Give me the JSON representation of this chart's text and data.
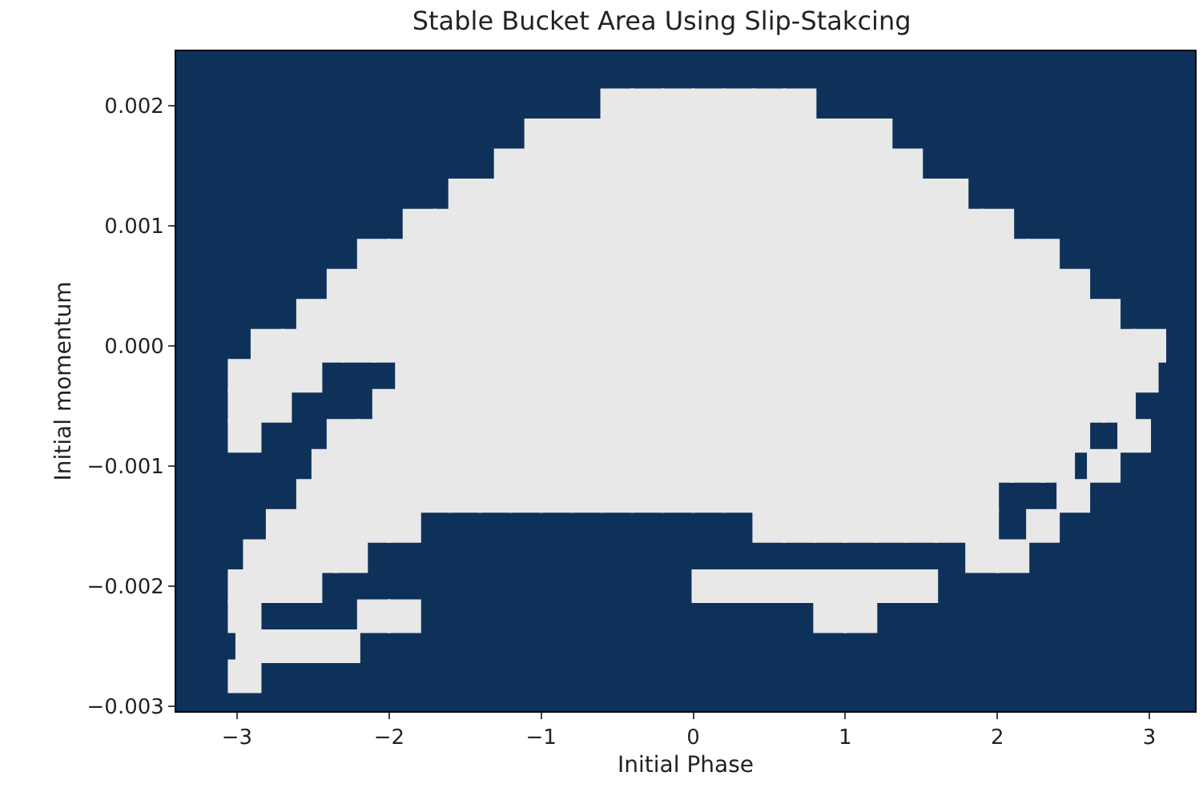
{
  "chart_data": {
    "type": "scatter",
    "title": "Stable Bucket Area Using Slip-Stakcing",
    "xlabel": "Initial Phase",
    "ylabel": "Initial momentum",
    "xlim": [
      -3.4,
      3.3
    ],
    "ylim": [
      -0.00304,
      0.00245
    ],
    "xticks": [
      {
        "value": -3,
        "label": "−3"
      },
      {
        "value": -2,
        "label": "−2"
      },
      {
        "value": -1,
        "label": "−1"
      },
      0,
      1,
      2,
      3
    ],
    "yticks": [
      {
        "value": -0.003,
        "label": "−0.003"
      },
      {
        "value": -0.002,
        "label": "−0.002"
      },
      {
        "value": -0.001,
        "label": "−0.001"
      },
      {
        "value": 0,
        "label": "0.000"
      },
      {
        "value": 0.001,
        "label": "0.001"
      },
      {
        "value": 0.002,
        "label": "0.002"
      }
    ],
    "grid": false,
    "marker": "square",
    "series": [
      {
        "color": "#e8e8e8",
        "x": [
          -0.5,
          -0.3,
          -0.1,
          0.1,
          0.3,
          0.5,
          0.7
        ],
        "values": [
          0.002,
          0.002,
          0.002,
          0.002,
          0.002,
          0.002,
          0.002
        ]
      },
      {
        "color": "#e8e8e8",
        "x": [
          -1.0,
          -0.8,
          -0.6,
          -0.4,
          -0.2,
          0.0,
          0.2,
          0.4,
          0.6,
          0.8,
          1.0,
          1.2
        ],
        "values": [
          0.00175,
          0.00175,
          0.00175,
          0.00175,
          0.00175,
          0.00175,
          0.00175,
          0.00175,
          0.00175,
          0.00175,
          0.00175,
          0.00175
        ]
      },
      {
        "color": "#e8e8e8",
        "x": [
          -1.2,
          -1.0,
          -0.8,
          -0.6,
          -0.4,
          -0.2,
          0.0,
          0.2,
          0.4,
          0.6,
          0.8,
          1.0,
          1.2,
          1.4
        ],
        "values": [
          0.0015,
          0.0015,
          0.0015,
          0.0015,
          0.0015,
          0.0015,
          0.0015,
          0.0015,
          0.0015,
          0.0015,
          0.0015,
          0.0015,
          0.0015,
          0.0015
        ]
      },
      {
        "color": "#e8e8e8",
        "x": [
          -1.5,
          -1.3,
          -1.1,
          -0.9,
          -0.7,
          -0.5,
          -0.3,
          -0.1,
          0.1,
          0.3,
          0.5,
          0.7,
          0.9,
          1.1,
          1.3,
          1.5,
          1.7
        ],
        "values": [
          0.00125,
          0.00125,
          0.00125,
          0.00125,
          0.00125,
          0.00125,
          0.00125,
          0.00125,
          0.00125,
          0.00125,
          0.00125,
          0.00125,
          0.00125,
          0.00125,
          0.00125,
          0.00125,
          0.00125
        ]
      },
      {
        "color": "#e8e8e8",
        "x": [
          -1.8,
          -1.6,
          -1.4,
          -1.2,
          -1.0,
          -0.8,
          -0.6,
          -0.4,
          -0.2,
          0.0,
          0.2,
          0.4,
          0.6,
          0.8,
          1.0,
          1.2,
          1.4,
          1.6,
          1.8,
          2.0
        ],
        "values": [
          0.001,
          0.001,
          0.001,
          0.001,
          0.001,
          0.001,
          0.001,
          0.001,
          0.001,
          0.001,
          0.001,
          0.001,
          0.001,
          0.001,
          0.001,
          0.001,
          0.001,
          0.001,
          0.001,
          0.001
        ]
      },
      {
        "color": "#e8e8e8",
        "x": [
          -2.1,
          -1.9,
          -1.7,
          -1.5,
          -1.3,
          -1.1,
          -0.9,
          -0.7,
          -0.5,
          -0.3,
          -0.1,
          0.1,
          0.3,
          0.5,
          0.7,
          0.9,
          1.1,
          1.3,
          1.5,
          1.7,
          1.9,
          2.1,
          2.3
        ],
        "values": [
          0.00075,
          0.00075,
          0.00075,
          0.00075,
          0.00075,
          0.00075,
          0.00075,
          0.00075,
          0.00075,
          0.00075,
          0.00075,
          0.00075,
          0.00075,
          0.00075,
          0.00075,
          0.00075,
          0.00075,
          0.00075,
          0.00075,
          0.00075,
          0.00075,
          0.00075,
          0.00075
        ]
      },
      {
        "color": "#e8e8e8",
        "x": [
          -2.3,
          -2.1,
          -1.9,
          -1.7,
          -1.5,
          -1.3,
          -1.1,
          -0.9,
          -0.7,
          -0.5,
          -0.3,
          -0.1,
          0.1,
          0.3,
          0.5,
          0.7,
          0.9,
          1.1,
          1.3,
          1.5,
          1.7,
          1.9,
          2.1,
          2.3,
          2.5
        ],
        "values": [
          0.0005,
          0.0005,
          0.0005,
          0.0005,
          0.0005,
          0.0005,
          0.0005,
          0.0005,
          0.0005,
          0.0005,
          0.0005,
          0.0005,
          0.0005,
          0.0005,
          0.0005,
          0.0005,
          0.0005,
          0.0005,
          0.0005,
          0.0005,
          0.0005,
          0.0005,
          0.0005,
          0.0005,
          0.0005
        ]
      },
      {
        "color": "#e8e8e8",
        "x": [
          -2.5,
          -2.3,
          -2.1,
          -1.9,
          -1.7,
          -1.5,
          -1.3,
          -1.1,
          -0.9,
          -0.7,
          -0.5,
          -0.3,
          -0.1,
          0.1,
          0.3,
          0.5,
          0.7,
          0.9,
          1.1,
          1.3,
          1.5,
          1.7,
          1.9,
          2.1,
          2.3,
          2.5,
          2.7
        ],
        "values": [
          0.00025,
          0.00025,
          0.00025,
          0.00025,
          0.00025,
          0.00025,
          0.00025,
          0.00025,
          0.00025,
          0.00025,
          0.00025,
          0.00025,
          0.00025,
          0.00025,
          0.00025,
          0.00025,
          0.00025,
          0.00025,
          0.00025,
          0.00025,
          0.00025,
          0.00025,
          0.00025,
          0.00025,
          0.00025,
          0.00025,
          0.00025
        ]
      },
      {
        "color": "#e8e8e8",
        "x": [
          -2.8,
          -2.6,
          -2.4,
          -2.2,
          -2.0,
          -1.8,
          -1.6,
          -1.4,
          -1.2,
          -1.0,
          -0.8,
          -0.6,
          -0.4,
          -0.2,
          0.0,
          0.2,
          0.4,
          0.6,
          0.8,
          1.0,
          1.2,
          1.4,
          1.6,
          1.8,
          2.0,
          2.2,
          2.4,
          2.6,
          2.8,
          3.0
        ],
        "values": [
          0,
          0,
          0,
          0,
          0,
          0,
          0,
          0,
          0,
          0,
          0,
          0,
          0,
          0,
          0,
          0,
          0,
          0,
          0,
          0,
          0,
          0,
          0,
          0,
          0,
          0,
          0,
          0,
          0,
          0
        ]
      },
      {
        "color": "#e8e8e8",
        "x": [
          -2.95,
          -2.75,
          -2.55,
          -1.85,
          -1.65,
          -1.45,
          -1.25,
          -1.05,
          -0.85,
          -0.65,
          -0.45,
          -0.25,
          -0.05,
          0.15,
          0.35,
          0.55,
          0.75,
          0.95,
          1.15,
          1.35,
          1.55,
          1.75,
          1.95,
          2.15,
          2.35,
          2.55,
          2.75,
          2.95
        ],
        "values": [
          -0.00025,
          -0.00025,
          -0.00025,
          -0.00025,
          -0.00025,
          -0.00025,
          -0.00025,
          -0.00025,
          -0.00025,
          -0.00025,
          -0.00025,
          -0.00025,
          -0.00025,
          -0.00025,
          -0.00025,
          -0.00025,
          -0.00025,
          -0.00025,
          -0.00025,
          -0.00025,
          -0.00025,
          -0.00025,
          -0.00025,
          -0.00025,
          -0.00025,
          -0.00025,
          -0.00025,
          -0.00025
        ]
      },
      {
        "color": "#e8e8e8",
        "x": [
          -2.95,
          -2.75,
          -2.0,
          -1.8,
          -1.6,
          -1.4,
          -1.2,
          -1.0,
          -0.8,
          -0.6,
          -0.4,
          -0.2,
          0.0,
          0.2,
          0.4,
          0.6,
          0.8,
          1.0,
          1.2,
          1.4,
          1.6,
          1.8,
          2.0,
          2.2,
          2.4,
          2.6,
          2.8
        ],
        "values": [
          -0.0005,
          -0.0005,
          -0.0005,
          -0.0005,
          -0.0005,
          -0.0005,
          -0.0005,
          -0.0005,
          -0.0005,
          -0.0005,
          -0.0005,
          -0.0005,
          -0.0005,
          -0.0005,
          -0.0005,
          -0.0005,
          -0.0005,
          -0.0005,
          -0.0005,
          -0.0005,
          -0.0005,
          -0.0005,
          -0.0005,
          -0.0005,
          -0.0005,
          -0.0005,
          -0.0005
        ]
      },
      {
        "color": "#e8e8e8",
        "x": [
          -2.95,
          -2.3,
          -2.1,
          -1.9,
          -1.7,
          -1.5,
          -1.3,
          -1.1,
          -0.9,
          -0.7,
          -0.5,
          -0.3,
          -0.1,
          0.1,
          0.3,
          0.5,
          0.7,
          0.9,
          1.1,
          1.3,
          1.5,
          1.7,
          1.9,
          2.1,
          2.3,
          2.5,
          2.9
        ],
        "values": [
          -0.00075,
          -0.00075,
          -0.00075,
          -0.00075,
          -0.00075,
          -0.00075,
          -0.00075,
          -0.00075,
          -0.00075,
          -0.00075,
          -0.00075,
          -0.00075,
          -0.00075,
          -0.00075,
          -0.00075,
          -0.00075,
          -0.00075,
          -0.00075,
          -0.00075,
          -0.00075,
          -0.00075,
          -0.00075,
          -0.00075,
          -0.00075,
          -0.00075,
          -0.00075,
          -0.00075
        ]
      },
      {
        "color": "#e8e8e8",
        "x": [
          -2.4,
          -2.2,
          -2.0,
          -1.8,
          -1.6,
          -1.4,
          -1.2,
          -1.0,
          -0.8,
          -0.6,
          -0.4,
          -0.2,
          0.0,
          0.2,
          0.4,
          0.6,
          0.8,
          1.0,
          1.2,
          1.4,
          1.6,
          1.8,
          2.0,
          2.2,
          2.4,
          2.7
        ],
        "values": [
          -0.001,
          -0.001,
          -0.001,
          -0.001,
          -0.001,
          -0.001,
          -0.001,
          -0.001,
          -0.001,
          -0.001,
          -0.001,
          -0.001,
          -0.001,
          -0.001,
          -0.001,
          -0.001,
          -0.001,
          -0.001,
          -0.001,
          -0.001,
          -0.001,
          -0.001,
          -0.001,
          -0.001,
          -0.001,
          -0.001
        ]
      },
      {
        "color": "#e8e8e8",
        "x": [
          -2.5,
          -2.3,
          -2.1,
          -1.9,
          -1.7,
          -1.5,
          -1.3,
          -1.1,
          -0.9,
          -0.7,
          -0.5,
          -0.3,
          -0.1,
          0.1,
          0.3,
          0.5,
          0.7,
          0.9,
          1.1,
          1.3,
          1.5,
          1.7,
          1.9,
          2.5
        ],
        "values": [
          -0.00125,
          -0.00125,
          -0.00125,
          -0.00125,
          -0.00125,
          -0.00125,
          -0.00125,
          -0.00125,
          -0.00125,
          -0.00125,
          -0.00125,
          -0.00125,
          -0.00125,
          -0.00125,
          -0.00125,
          -0.00125,
          -0.00125,
          -0.00125,
          -0.00125,
          -0.00125,
          -0.00125,
          -0.00125,
          -0.00125,
          -0.00125
        ]
      },
      {
        "color": "#e8e8e8",
        "x": [
          -2.7,
          -2.5,
          -2.3,
          -2.1,
          -1.9,
          0.5,
          0.7,
          0.9,
          1.1,
          1.3,
          1.5,
          1.7,
          1.9,
          2.3
        ],
        "values": [
          -0.0015,
          -0.0015,
          -0.0015,
          -0.0015,
          -0.0015,
          -0.0015,
          -0.0015,
          -0.0015,
          -0.0015,
          -0.0015,
          -0.0015,
          -0.0015,
          -0.0015,
          -0.0015
        ]
      },
      {
        "color": "#e8e8e8",
        "x": [
          -2.85,
          -2.65,
          -2.45,
          -2.25,
          1.9,
          2.1
        ],
        "values": [
          -0.00175,
          -0.00175,
          -0.00175,
          -0.00175,
          -0.00175,
          -0.00175
        ]
      },
      {
        "color": "#e8e8e8",
        "x": [
          -2.95,
          -2.75,
          -2.55,
          0.1,
          0.3,
          0.5,
          0.7,
          0.9,
          1.1,
          1.3,
          1.5
        ],
        "values": [
          -0.002,
          -0.002,
          -0.002,
          -0.002,
          -0.002,
          -0.002,
          -0.002,
          -0.002,
          -0.002,
          -0.002,
          -0.002
        ]
      },
      {
        "color": "#e8e8e8",
        "x": [
          -2.95,
          -2.1,
          -1.9,
          0.9,
          1.1
        ],
        "values": [
          -0.00225,
          -0.00225,
          -0.00225,
          -0.00225,
          -0.00225
        ]
      },
      {
        "color": "#e8e8e8",
        "x": [
          -2.9,
          -2.7,
          -2.5,
          -2.3
        ],
        "values": [
          -0.0025,
          -0.0025,
          -0.0025,
          -0.0025
        ]
      },
      {
        "color": "#e8e8e8",
        "x": [
          -2.95
        ],
        "values": [
          -0.00275
        ]
      }
    ]
  }
}
